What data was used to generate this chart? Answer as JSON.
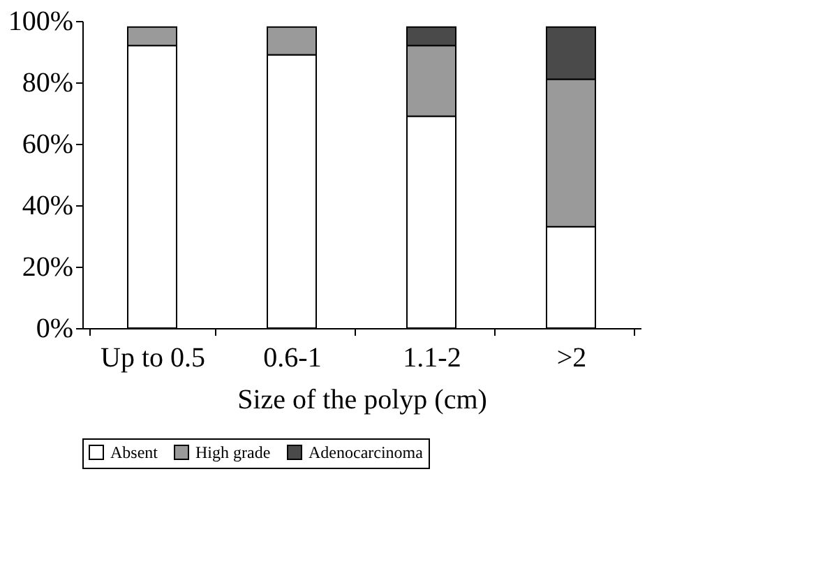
{
  "chart_data": {
    "type": "bar",
    "stacked": true,
    "xlabel": "Size of the polyp (cm)",
    "categories": [
      "Up to 0.5",
      "0.6-1",
      "1.1-2",
      ">2"
    ],
    "series": [
      {
        "name": "Absent",
        "color": "#ffffff",
        "values": [
          92,
          89,
          69,
          33
        ]
      },
      {
        "name": "High grade",
        "color": "#9a9a9a",
        "values": [
          6,
          9,
          23,
          48
        ]
      },
      {
        "name": "Adenocarcinoma",
        "color": "#4a4a4a",
        "values": [
          null,
          null,
          6,
          17
        ]
      }
    ],
    "ylim": [
      0,
      100
    ],
    "yticks": [
      {
        "value": 0,
        "label": "0%"
      },
      {
        "value": 20,
        "label": "20%"
      },
      {
        "value": 40,
        "label": "40%"
      },
      {
        "value": 60,
        "label": "60%"
      },
      {
        "value": 80,
        "label": "80%"
      },
      {
        "value": 100,
        "label": "100%"
      }
    ],
    "grid": false,
    "legend": "bottom"
  }
}
